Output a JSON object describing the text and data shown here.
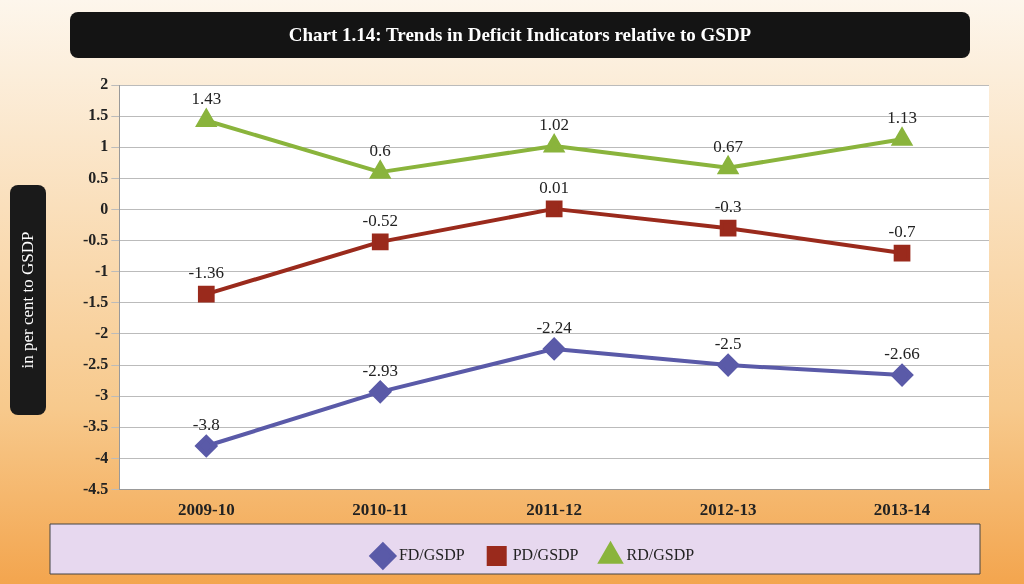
{
  "chart_data": {
    "type": "line",
    "title": "Chart 1.14: Trends in Deficit Indicators relative to GSDP",
    "ylabel": "in per cent to GSDP",
    "categories": [
      "2009-10",
      "2010-11",
      "2011-12",
      "2012-13",
      "2013-14"
    ],
    "series": [
      {
        "name": "FD/GSDP",
        "color": "#5a5aa8",
        "marker": "diamond",
        "values": [
          -3.8,
          -2.93,
          -2.24,
          -2.5,
          -2.66
        ]
      },
      {
        "name": "PD/GSDP",
        "color": "#9a2a1c",
        "marker": "square",
        "values": [
          -1.36,
          -0.52,
          0.01,
          -0.3,
          -0.7
        ]
      },
      {
        "name": "RD/GSDP",
        "color": "#8ab43c",
        "marker": "triangle",
        "values": [
          1.43,
          0.6,
          1.02,
          0.67,
          1.13
        ]
      }
    ],
    "ylim": [
      -4.5,
      2
    ],
    "yticks": [
      -4.5,
      -4,
      -3.5,
      -3,
      -2.5,
      -2,
      -1.5,
      -1,
      -0.5,
      0,
      0.5,
      1,
      1.5,
      2
    ],
    "grid": "y",
    "legend": "bottom",
    "data_labels": true,
    "line_style": "solid"
  }
}
